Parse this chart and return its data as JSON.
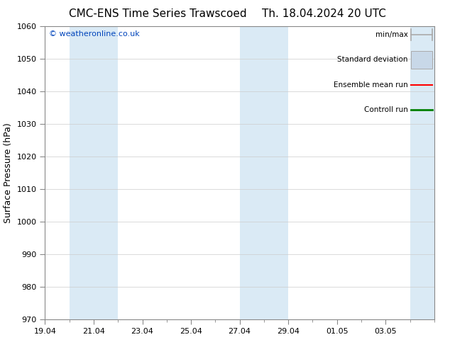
{
  "title": "CMC-ENS Time Series Trawscoed",
  "title2": "Th. 18.04.2024 20 UTC",
  "ylabel": "Surface Pressure (hPa)",
  "ylim": [
    970,
    1060
  ],
  "yticks": [
    970,
    980,
    990,
    1000,
    1010,
    1020,
    1030,
    1040,
    1050,
    1060
  ],
  "xtick_labels": [
    "19.04",
    "21.04",
    "23.04",
    "25.04",
    "27.04",
    "29.04",
    "01.05",
    "03.05"
  ],
  "xtick_positions": [
    0,
    2,
    4,
    6,
    8,
    10,
    12,
    14
  ],
  "xlim": [
    0,
    16
  ],
  "shaded_bands": [
    {
      "x_start": 1.0,
      "x_end": 3.0,
      "color": "#daeaf5"
    },
    {
      "x_start": 8.0,
      "x_end": 10.0,
      "color": "#daeaf5"
    },
    {
      "x_start": 15.0,
      "x_end": 16.0,
      "color": "#daeaf5"
    }
  ],
  "watermark": "© weatheronline.co.uk",
  "watermark_color": "#0044bb",
  "legend_entries": [
    {
      "label": "min/max",
      "color": "#aabbcc",
      "type": "minmax"
    },
    {
      "label": "Standard deviation",
      "color": "#c8d8e8",
      "type": "std"
    },
    {
      "label": "Ensemble mean run",
      "color": "red",
      "type": "line"
    },
    {
      "label": "Controll run",
      "color": "green",
      "type": "line"
    }
  ],
  "bg_color": "#ffffff",
  "grid_color": "#cccccc",
  "spine_color": "#888888",
  "title_fontsize": 11,
  "axis_label_fontsize": 9,
  "tick_fontsize": 8,
  "legend_fontsize": 7.5
}
